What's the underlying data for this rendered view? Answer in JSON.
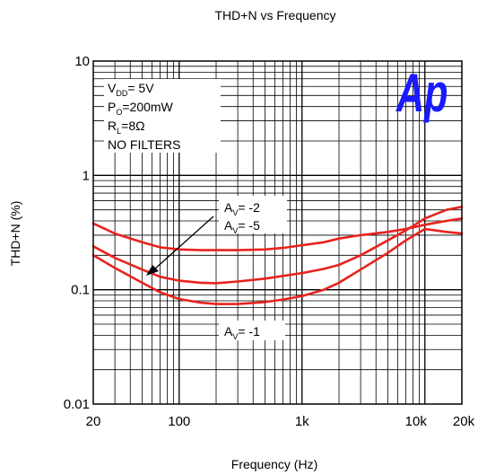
{
  "chart_data": {
    "type": "line",
    "title": "THD+N vs Frequency",
    "xlabel": "Frequency (Hz)",
    "ylabel": "THD+N (%)",
    "x_scale": "log",
    "y_scale": "log",
    "xlim": [
      20,
      20000
    ],
    "ylim": [
      0.01,
      10
    ],
    "grid": true,
    "x_ticks": [
      {
        "value": 20,
        "label": "20"
      },
      {
        "value": 100,
        "label": "100"
      },
      {
        "value": 1000,
        "label": "1k"
      },
      {
        "value": 10000,
        "label": "10k"
      },
      {
        "value": 20000,
        "label": "20k"
      }
    ],
    "y_ticks": [
      {
        "value": 10,
        "label": "10"
      },
      {
        "value": 1,
        "label": "1"
      },
      {
        "value": 0.1,
        "label": "0.1"
      },
      {
        "value": 0.01,
        "label": "0.01"
      }
    ],
    "series_color": "#e8231e",
    "series": [
      {
        "x": [
          20,
          30,
          50,
          70,
          100,
          150,
          200,
          300,
          500,
          700,
          1000,
          1500,
          2000,
          3000,
          5000,
          7000,
          10000,
          15000,
          20000
        ],
        "y": [
          0.38,
          0.31,
          0.26,
          0.235,
          0.225,
          0.222,
          0.222,
          0.222,
          0.225,
          0.232,
          0.245,
          0.26,
          0.28,
          0.3,
          0.32,
          0.34,
          0.37,
          0.4,
          0.42
        ]
      },
      {
        "x": [
          20,
          30,
          50,
          70,
          100,
          150,
          200,
          300,
          500,
          700,
          1000,
          1500,
          2000,
          3000,
          5000,
          7000,
          10000,
          15000,
          20000
        ],
        "y": [
          0.24,
          0.19,
          0.15,
          0.13,
          0.12,
          0.115,
          0.114,
          0.118,
          0.125,
          0.132,
          0.14,
          0.152,
          0.165,
          0.2,
          0.27,
          0.33,
          0.42,
          0.5,
          0.53
        ]
      },
      {
        "x": [
          20,
          30,
          50,
          70,
          100,
          150,
          200,
          300,
          500,
          700,
          1000,
          1500,
          2000,
          3000,
          5000,
          7000,
          10000,
          15000,
          20000
        ],
        "y": [
          0.2,
          0.155,
          0.115,
          0.095,
          0.083,
          0.077,
          0.075,
          0.075,
          0.078,
          0.082,
          0.088,
          0.1,
          0.115,
          0.15,
          0.21,
          0.27,
          0.34,
          0.32,
          0.31
        ]
      }
    ],
    "annotations": {
      "conditions": {
        "vdd_main": "V",
        "vdd_sub": "DD",
        "vdd_value": "= 5V",
        "po_main": "P",
        "po_sub": "O",
        "po_value": "=200mW",
        "rl_main": "R",
        "rl_sub": "L",
        "rl_value": "=8Ω",
        "filters": "NO FILTERS"
      },
      "av_upper": [
        {
          "main": "A",
          "sub": "V",
          "value": "= -2"
        },
        {
          "main": "A",
          "sub": "V",
          "value": "= -5"
        }
      ],
      "av_lower": {
        "main": "A",
        "sub": "V",
        "value": "= -1"
      },
      "logo": "Ap"
    }
  }
}
